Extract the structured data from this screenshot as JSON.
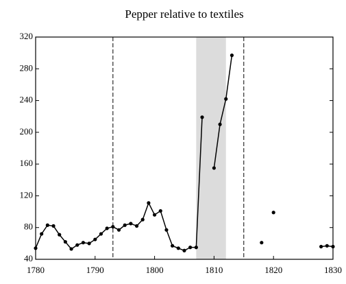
{
  "chart_data": {
    "type": "line",
    "title": "Pepper relative to textiles",
    "x": [
      1780,
      1781,
      1782,
      1783,
      1784,
      1785,
      1786,
      1787,
      1788,
      1789,
      1790,
      1791,
      1792,
      1793,
      1794,
      1795,
      1796,
      1797,
      1798,
      1799,
      1800,
      1801,
      1802,
      1803,
      1804,
      1805,
      1806,
      1807,
      1808,
      1809,
      1810,
      1811,
      1812,
      1813,
      1814,
      1815,
      1816,
      1817,
      1818,
      1819,
      1820,
      1821,
      1822,
      1823,
      1824,
      1825,
      1826,
      1827,
      1828,
      1829,
      1830
    ],
    "values": [
      54,
      72,
      83,
      82,
      71,
      62,
      53,
      58,
      61,
      60,
      65,
      72,
      79,
      81,
      77,
      83,
      85,
      82,
      90,
      111,
      96,
      101,
      77,
      57,
      54,
      51,
      55,
      55,
      219,
      null,
      155,
      210,
      242,
      297,
      null,
      null,
      null,
      null,
      61,
      null,
      99,
      null,
      null,
      null,
      null,
      null,
      null,
      null,
      56,
      57,
      56
    ],
    "color": "#000000",
    "xlim": [
      1780,
      1830
    ],
    "xticks": [
      1780,
      1790,
      1800,
      1810,
      1820,
      1830
    ],
    "ylim": [
      40,
      320
    ],
    "yticks": [
      40,
      80,
      120,
      160,
      200,
      240,
      280,
      320
    ],
    "shaded_region": [
      1807,
      1812
    ],
    "shade_color": "#dcdcdc",
    "vlines": [
      1793,
      1815
    ],
    "grid": false
  }
}
